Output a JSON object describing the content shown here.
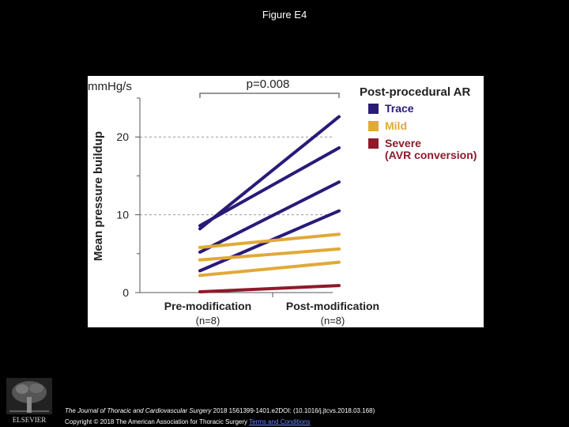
{
  "slide": {
    "title": "Figure E4",
    "citation_journal": "The Journal of Thoracic and Cardiovascular Surgery",
    "citation_rest": " 2018 1561399-1401.e2DOI: (10.1016/j.jtcvs.2018.03.168)",
    "copyright": "Copyright © 2018 The American Association for Thoracic Surgery ",
    "terms_link": "Terms and Conditions",
    "publisher_logo": "ELSEVIER"
  },
  "chart_data": {
    "type": "line",
    "ylabel": "Mean pressure buildup",
    "yunit": "mm​Hg/s",
    "ylim": [
      0,
      25
    ],
    "yticks": [
      0,
      10,
      20
    ],
    "grid": "dashed at 10 and 20",
    "categories": [
      "Pre-modification",
      "Post-modification"
    ],
    "category_sublabels": [
      "(n=8)",
      "(n=8)"
    ],
    "annotation": "p=0.008",
    "legend": {
      "title": "Post-procedural AR",
      "position": "top-right",
      "entries": [
        {
          "label": "Trace",
          "color": "#2a1a78"
        },
        {
          "label": "Mild",
          "color": "#e0a93a"
        },
        {
          "label": "Severe\n(AVR conversion)",
          "color": "#8e1a2a"
        }
      ]
    },
    "series": [
      {
        "group": "Trace",
        "color": "#2a1a78",
        "values": [
          8.2,
          22.6
        ]
      },
      {
        "group": "Trace",
        "color": "#2a1a78",
        "values": [
          8.6,
          18.6
        ]
      },
      {
        "group": "Trace",
        "color": "#2a1a78",
        "values": [
          5.2,
          14.2
        ]
      },
      {
        "group": "Trace",
        "color": "#2a1a78",
        "values": [
          2.8,
          10.5
        ]
      },
      {
        "group": "Mild",
        "color": "#e0a93a",
        "values": [
          5.8,
          7.5
        ]
      },
      {
        "group": "Mild",
        "color": "#e0a93a",
        "values": [
          4.2,
          5.6
        ]
      },
      {
        "group": "Mild",
        "color": "#e0a93a",
        "values": [
          2.2,
          3.9
        ]
      },
      {
        "group": "Severe",
        "color": "#8e1a2a",
        "values": [
          0.1,
          0.9
        ]
      }
    ]
  }
}
